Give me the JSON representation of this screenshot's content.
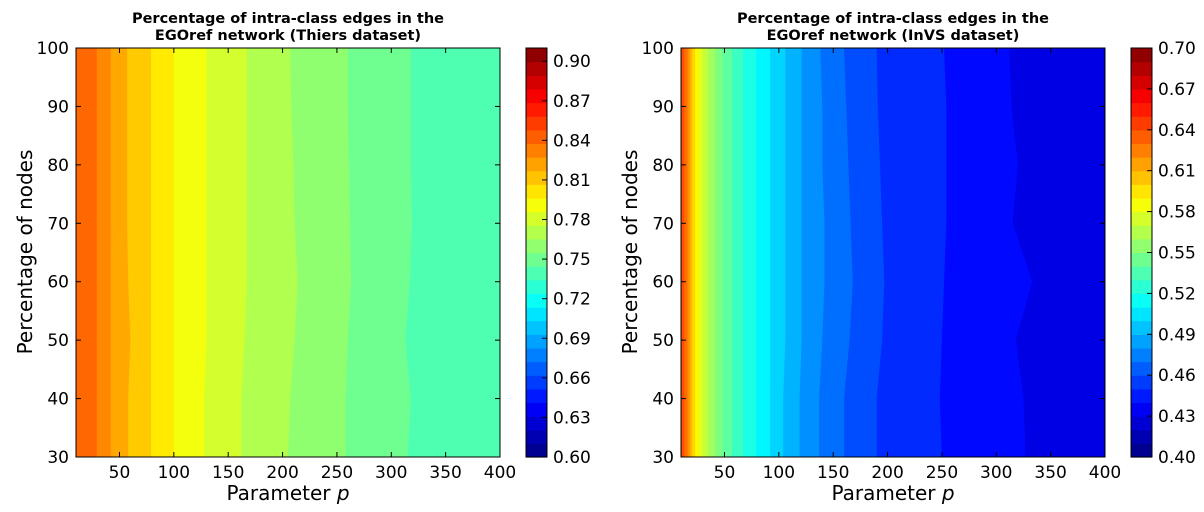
{
  "chart_data": [
    {
      "type": "contour",
      "title_lines": [
        "Percentage of intra-class edges in the",
        "EGOref network (Thiers dataset)"
      ],
      "xlabel_text": "Parameter ",
      "xlabel_var": "p",
      "ylabel": "Percentage of nodes",
      "xlim": [
        10,
        400
      ],
      "ylim": [
        30,
        100
      ],
      "xticks": [
        50,
        100,
        150,
        200,
        250,
        300,
        350,
        400
      ],
      "yticks": [
        30,
        40,
        50,
        60,
        70,
        80,
        90,
        100
      ],
      "colorbar_range": [
        0.6,
        0.91
      ],
      "colorbar_levels": 30,
      "colorbar_ticks": [
        "0.60",
        "0.63",
        "0.66",
        "0.69",
        "0.72",
        "0.75",
        "0.78",
        "0.81",
        "0.84",
        "0.87",
        "0.90"
      ],
      "colorbar_tick_values": [
        0.6,
        0.63,
        0.66,
        0.69,
        0.72,
        0.75,
        0.78,
        0.81,
        0.84,
        0.87,
        0.9
      ],
      "y_samples": [
        30,
        40,
        50,
        60,
        70,
        80,
        90,
        100
      ],
      "boundaries": [
        {
          "level": 0.83,
          "x": [
            29,
            29,
            29,
            29,
            29,
            29,
            29,
            29
          ]
        },
        {
          "level": 0.82,
          "x": [
            42,
            42,
            42,
            42,
            42,
            42,
            42,
            42
          ]
        },
        {
          "level": 0.81,
          "x": [
            58,
            58,
            60,
            58,
            57,
            57,
            57,
            57
          ]
        },
        {
          "level": 0.8,
          "x": [
            79,
            79,
            79,
            79,
            79,
            79,
            79,
            79
          ]
        },
        {
          "level": 0.79,
          "x": [
            100,
            100,
            100,
            100,
            100,
            100,
            100,
            100
          ]
        },
        {
          "level": 0.78,
          "x": [
            128,
            128,
            130,
            130,
            130,
            130,
            130,
            130
          ]
        },
        {
          "level": 0.77,
          "x": [
            162,
            162,
            165,
            167,
            167,
            167,
            167,
            167
          ]
        },
        {
          "level": 0.76,
          "x": [
            205,
            207,
            211,
            214,
            211,
            210,
            208,
            207
          ]
        },
        {
          "level": 0.75,
          "x": [
            258,
            258,
            260,
            263,
            262,
            261,
            260,
            260
          ]
        },
        {
          "level": 0.74,
          "x": [
            315,
            318,
            313,
            317,
            319,
            318,
            318,
            318
          ]
        }
      ],
      "fill_levels": [
        0.84,
        0.83,
        0.82,
        0.81,
        0.8,
        0.79,
        0.78,
        0.77,
        0.76,
        0.75,
        0.74
      ]
    },
    {
      "type": "contour",
      "title_lines": [
        "Percentage of intra-class edges in the",
        "EGOref network (InVS dataset)"
      ],
      "xlabel_text": "Parameter ",
      "xlabel_var": "p",
      "ylabel": "Percentage of nodes",
      "xlim": [
        10,
        400
      ],
      "ylim": [
        30,
        100
      ],
      "xticks": [
        50,
        100,
        150,
        200,
        250,
        300,
        350,
        400
      ],
      "yticks": [
        30,
        40,
        50,
        60,
        70,
        80,
        90,
        100
      ],
      "colorbar_range": [
        0.4,
        0.7
      ],
      "colorbar_levels": 30,
      "colorbar_ticks": [
        "0.40",
        "0.43",
        "0.46",
        "0.49",
        "0.52",
        "0.55",
        "0.58",
        "0.61",
        "0.64",
        "0.67",
        "0.70"
      ],
      "colorbar_tick_values": [
        0.4,
        0.43,
        0.46,
        0.49,
        0.52,
        0.55,
        0.58,
        0.61,
        0.64,
        0.67,
        0.7
      ],
      "y_samples": [
        30,
        40,
        50,
        60,
        70,
        80,
        90,
        100
      ],
      "boundaries": [
        {
          "level": 0.63,
          "x": [
            13,
            13,
            13,
            13,
            13,
            13,
            13,
            13
          ]
        },
        {
          "level": 0.62,
          "x": [
            16,
            16,
            16,
            16,
            16,
            16,
            16,
            16
          ]
        },
        {
          "level": 0.61,
          "x": [
            18,
            18,
            18,
            18,
            18,
            18,
            18,
            18
          ]
        },
        {
          "level": 0.6,
          "x": [
            20,
            20,
            20,
            20,
            20,
            20,
            20,
            20
          ]
        },
        {
          "level": 0.59,
          "x": [
            23,
            23,
            23,
            23,
            23,
            23,
            23,
            23
          ]
        },
        {
          "level": 0.58,
          "x": [
            26,
            26,
            26,
            26,
            26,
            26,
            26,
            26
          ]
        },
        {
          "level": 0.57,
          "x": [
            30,
            30,
            30,
            30,
            30,
            30,
            30,
            30
          ]
        },
        {
          "level": 0.56,
          "x": [
            35,
            35,
            35,
            35,
            35,
            35,
            35,
            35
          ]
        },
        {
          "level": 0.55,
          "x": [
            41,
            41,
            41,
            41,
            41,
            41,
            41,
            41
          ]
        },
        {
          "level": 0.54,
          "x": [
            48,
            48,
            48,
            48,
            48,
            48,
            48,
            48
          ]
        },
        {
          "level": 0.53,
          "x": [
            57,
            57,
            57,
            57,
            57,
            57,
            57,
            57
          ]
        },
        {
          "level": 0.52,
          "x": [
            67,
            67,
            67,
            67,
            67,
            67,
            67,
            67
          ]
        },
        {
          "level": 0.51,
          "x": [
            79,
            79,
            79,
            79,
            79,
            79,
            79,
            79
          ]
        },
        {
          "level": 0.5,
          "x": [
            92,
            92,
            92,
            92,
            92,
            92,
            92,
            92
          ]
        },
        {
          "level": 0.49,
          "x": [
            104,
            104,
            106,
            106,
            106,
            106,
            106,
            106
          ]
        },
        {
          "level": 0.48,
          "x": [
            119,
            119,
            121,
            121,
            121,
            121,
            121,
            121
          ]
        },
        {
          "level": 0.47,
          "x": [
            137,
            137,
            140,
            142,
            142,
            140,
            140,
            138
          ]
        },
        {
          "level": 0.46,
          "x": [
            160,
            160,
            165,
            168,
            166,
            164,
            162,
            160
          ]
        },
        {
          "level": 0.45,
          "x": [
            190,
            190,
            195,
            197,
            195,
            193,
            191,
            190
          ]
        },
        {
          "level": 0.44,
          "x": [
            250,
            248,
            250,
            252,
            254,
            254,
            254,
            252
          ]
        },
        {
          "level": 0.43,
          "x": [
            327,
            325,
            318,
            333,
            315,
            320,
            314,
            312
          ]
        }
      ],
      "fill_levels": [
        0.64,
        0.63,
        0.62,
        0.61,
        0.6,
        0.59,
        0.58,
        0.57,
        0.56,
        0.55,
        0.54,
        0.53,
        0.52,
        0.51,
        0.5,
        0.49,
        0.48,
        0.47,
        0.46,
        0.45,
        0.44,
        0.43
      ]
    }
  ]
}
